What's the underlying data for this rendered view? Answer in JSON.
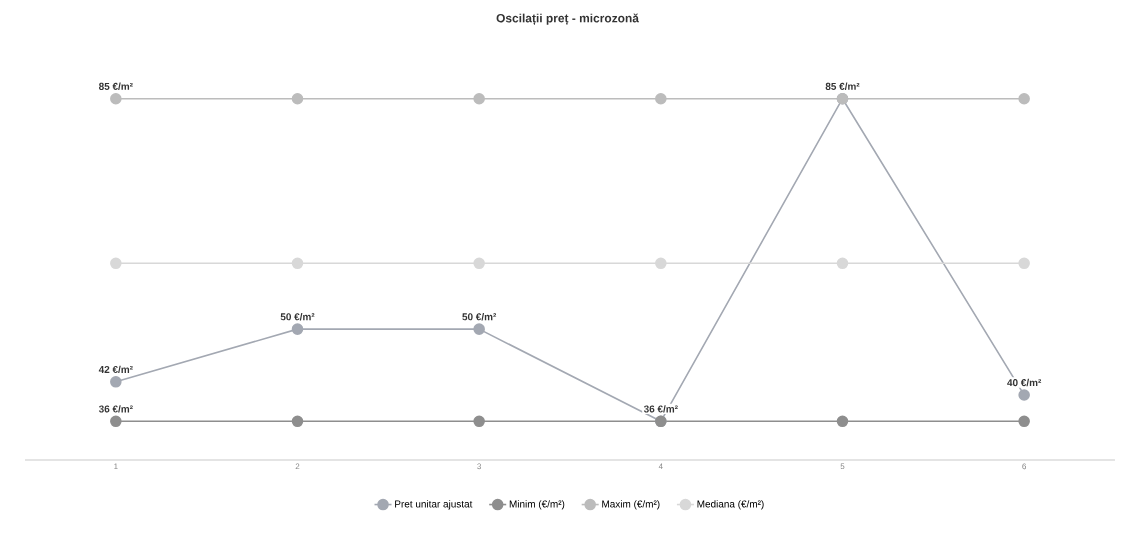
{
  "chart_data": {
    "type": "line",
    "title": "Oscilații preț - microzonă",
    "categories": [
      "1",
      "2",
      "3",
      "4",
      "5",
      "6"
    ],
    "series": [
      {
        "name": "Pret unitar ajustat",
        "color": "#a3a8b2",
        "values": [
          42,
          50,
          50,
          36,
          85,
          40
        ],
        "value_labels": [
          "42 €/m²",
          "50 €/m²",
          "50 €/m²",
          "36 €/m²",
          "85 €/m²",
          "40 €/m²"
        ]
      },
      {
        "name": "Minim (€/m²)",
        "color": "#8e8e8e",
        "values": [
          36,
          36,
          36,
          36,
          36,
          36
        ],
        "value_labels": [
          "36 €/m²",
          null,
          null,
          null,
          null,
          null
        ]
      },
      {
        "name": "Maxim (€/m²)",
        "color": "#bcbcbc",
        "values": [
          85,
          85,
          85,
          85,
          85,
          85
        ],
        "value_labels": [
          "85 €/m²",
          null,
          null,
          null,
          null,
          null
        ]
      },
      {
        "name": "Mediana (€/m²)",
        "color": "#d8d8d8",
        "values": [
          60,
          60,
          60,
          60,
          60,
          60
        ]
      }
    ],
    "tick_labels": "x",
    "marker": "circle",
    "line_style": "solid",
    "legend": "bottom"
  }
}
